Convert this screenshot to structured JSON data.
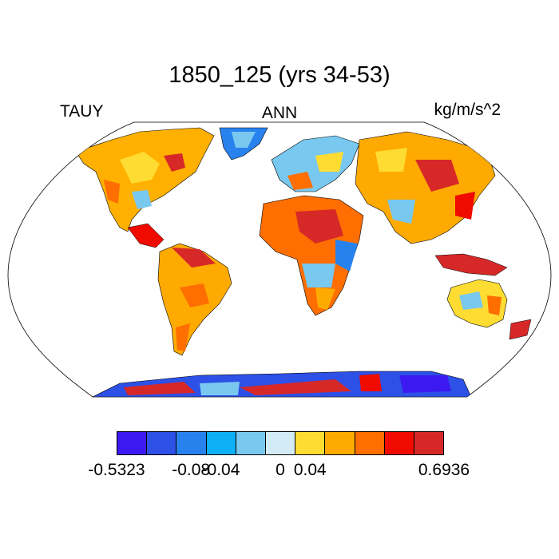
{
  "title": "1850_125 (yrs 34-53)",
  "header": {
    "left": "TAUY",
    "center": "ANN",
    "right": "kg/m/s^2"
  },
  "colorbar": {
    "colors": [
      "#3c19f0",
      "#2d50e6",
      "#2882ee",
      "#0faff5",
      "#78c8f0",
      "#d2ebf5",
      "#ffdc32",
      "#ffaa00",
      "#ff6e00",
      "#f00a00",
      "#d72828"
    ],
    "labels": [
      {
        "text": "-0.5323",
        "boundary": 0
      },
      {
        "text": "-0.08",
        "boundary": 2
      },
      {
        "text": "-0.04",
        "boundary": 3
      },
      {
        "text": "0",
        "boundary": 5
      },
      {
        "text": "0.04",
        "boundary": 6
      },
      {
        "text": "0.6936",
        "boundary": 7
      }
    ]
  },
  "map": {
    "projection": "robinson",
    "variable": "TAUY",
    "season": "ANN"
  }
}
